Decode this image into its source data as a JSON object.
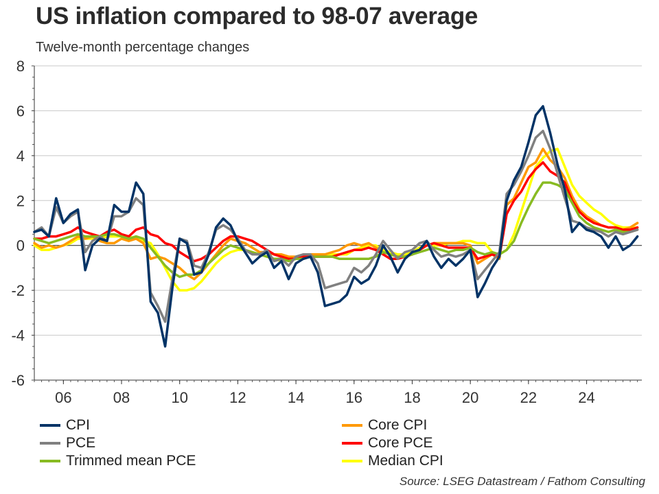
{
  "chart_data": {
    "type": "line",
    "title": "US inflation compared to 98-07 average",
    "subtitle": "Twelve-month percentage changes",
    "source": "Source: LSEG Datastream / Fathom Consulting",
    "xlabel": "",
    "ylabel": "",
    "xlim": [
      2005.0,
      2025.9
    ],
    "ylim": [
      -6,
      8
    ],
    "yticks": [
      8,
      6,
      4,
      2,
      0,
      -2,
      -4,
      -6
    ],
    "ytick_labels": [
      "8",
      "6",
      "4",
      "2",
      "0",
      "-2",
      "-4",
      "-6"
    ],
    "xticks": [
      2006,
      2008,
      2010,
      2012,
      2014,
      2016,
      2018,
      2020,
      2022,
      2024
    ],
    "xtick_labels": [
      "06",
      "08",
      "10",
      "12",
      "14",
      "16",
      "18",
      "20",
      "22",
      "24"
    ],
    "grid": true,
    "legend_position": "bottom",
    "x": [
      2005.0,
      2005.25,
      2005.5,
      2005.75,
      2006.0,
      2006.25,
      2006.5,
      2006.75,
      2007.0,
      2007.25,
      2007.5,
      2007.75,
      2008.0,
      2008.25,
      2008.5,
      2008.75,
      2009.0,
      2009.25,
      2009.5,
      2009.75,
      2010.0,
      2010.25,
      2010.5,
      2010.75,
      2011.0,
      2011.25,
      2011.5,
      2011.75,
      2012.0,
      2012.25,
      2012.5,
      2012.75,
      2013.0,
      2013.25,
      2013.5,
      2013.75,
      2014.0,
      2014.25,
      2014.5,
      2014.75,
      2015.0,
      2015.25,
      2015.5,
      2015.75,
      2016.0,
      2016.25,
      2016.5,
      2016.75,
      2017.0,
      2017.25,
      2017.5,
      2017.75,
      2018.0,
      2018.25,
      2018.5,
      2018.75,
      2019.0,
      2019.25,
      2019.5,
      2019.75,
      2020.0,
      2020.25,
      2020.5,
      2020.75,
      2021.0,
      2021.25,
      2021.5,
      2021.75,
      2022.0,
      2022.25,
      2022.5,
      2022.75,
      2023.0,
      2023.25,
      2023.5,
      2023.75,
      2024.0,
      2024.25,
      2024.5,
      2024.75,
      2025.0,
      2025.25,
      2025.5,
      2025.75
    ],
    "series": [
      {
        "name": "CPI",
        "color": "#003366",
        "values": [
          0.6,
          0.7,
          0.4,
          2.1,
          1.0,
          1.4,
          1.6,
          -1.1,
          0.0,
          0.3,
          0.2,
          1.8,
          1.5,
          1.5,
          2.8,
          2.3,
          -2.5,
          -3.0,
          -4.5,
          -1.9,
          0.3,
          0.1,
          -1.3,
          -1.2,
          -0.4,
          0.8,
          1.2,
          0.9,
          0.2,
          -0.3,
          -0.8,
          -0.5,
          -0.3,
          -1.0,
          -0.7,
          -1.5,
          -0.8,
          -0.6,
          -0.5,
          -1.2,
          -2.7,
          -2.6,
          -2.5,
          -2.2,
          -1.4,
          -1.7,
          -1.5,
          -0.9,
          0.0,
          -0.5,
          -1.2,
          -0.6,
          -0.3,
          -0.2,
          0.2,
          -0.5,
          -1.0,
          -0.6,
          -0.9,
          -0.6,
          -0.2,
          -2.3,
          -1.7,
          -1.0,
          -0.5,
          2.0,
          2.9,
          3.5,
          4.6,
          5.8,
          6.2,
          5.0,
          3.6,
          2.5,
          0.6,
          1.0,
          0.7,
          0.6,
          0.4,
          -0.1,
          0.4,
          -0.2,
          0.0,
          0.4
        ]
      },
      {
        "name": "PCE",
        "color": "#808080",
        "values": [
          0.6,
          0.8,
          0.4,
          1.7,
          1.0,
          1.3,
          1.5,
          -0.3,
          0.2,
          0.4,
          0.2,
          1.3,
          1.3,
          1.5,
          2.1,
          1.8,
          -2.1,
          -2.7,
          -3.4,
          -1.5,
          0.3,
          0.2,
          -0.9,
          -1.0,
          -0.3,
          0.7,
          0.9,
          0.7,
          0.3,
          -0.2,
          -0.4,
          -0.4,
          -0.2,
          -0.7,
          -0.6,
          -0.9,
          -0.5,
          -0.4,
          -0.4,
          -0.8,
          -1.9,
          -1.8,
          -1.7,
          -1.6,
          -1.0,
          -1.2,
          -0.9,
          -0.4,
          0.2,
          -0.2,
          -0.6,
          -0.3,
          -0.2,
          0.1,
          0.2,
          -0.2,
          -0.5,
          -0.4,
          -0.5,
          -0.4,
          -0.2,
          -1.5,
          -1.1,
          -0.7,
          -0.3,
          2.3,
          2.7,
          3.3,
          4.0,
          4.8,
          5.1,
          4.3,
          3.2,
          2.1,
          1.1,
          1.0,
          0.8,
          0.7,
          0.6,
          0.4,
          0.6,
          0.5,
          0.6,
          0.7
        ]
      },
      {
        "name": "Core CPI",
        "color": "#ff9900",
        "values": [
          0.1,
          -0.1,
          0.0,
          -0.1,
          0.0,
          0.2,
          0.4,
          0.3,
          0.4,
          0.2,
          0.1,
          0.1,
          0.3,
          0.2,
          0.3,
          0.1,
          -0.6,
          -0.5,
          -0.6,
          -0.8,
          -1.0,
          -1.3,
          -1.5,
          -1.2,
          -0.8,
          -0.4,
          0.0,
          0.3,
          0.2,
          0.1,
          -0.1,
          -0.3,
          -0.3,
          -0.4,
          -0.4,
          -0.5,
          -0.5,
          -0.5,
          -0.4,
          -0.4,
          -0.4,
          -0.3,
          -0.2,
          0.0,
          0.1,
          0.0,
          0.1,
          -0.1,
          -0.3,
          -0.4,
          -0.5,
          -0.5,
          -0.4,
          -0.2,
          0.0,
          0.1,
          0.1,
          0.1,
          0.1,
          0.1,
          0.0,
          -0.8,
          -0.6,
          -0.4,
          -0.6,
          1.8,
          2.1,
          2.8,
          3.5,
          3.7,
          4.3,
          3.8,
          3.5,
          3.0,
          2.2,
          1.6,
          1.3,
          1.1,
          0.9,
          0.8,
          0.8,
          0.7,
          0.8,
          1.0
        ]
      },
      {
        "name": "Core PCE",
        "color": "#ff0000",
        "values": [
          0.3,
          0.3,
          0.4,
          0.4,
          0.5,
          0.6,
          0.8,
          0.6,
          0.5,
          0.4,
          0.6,
          0.7,
          0.5,
          0.4,
          0.7,
          0.8,
          0.5,
          0.4,
          0.1,
          0.0,
          -0.3,
          -0.5,
          -0.7,
          -0.6,
          -0.4,
          -0.1,
          0.2,
          0.4,
          0.4,
          0.3,
          0.2,
          0.0,
          -0.2,
          -0.4,
          -0.5,
          -0.6,
          -0.6,
          -0.5,
          -0.5,
          -0.5,
          -0.5,
          -0.5,
          -0.4,
          -0.3,
          -0.2,
          -0.2,
          -0.1,
          -0.2,
          -0.4,
          -0.6,
          -0.6,
          -0.5,
          -0.4,
          -0.2,
          0.0,
          0.1,
          0.0,
          -0.1,
          -0.1,
          -0.1,
          -0.1,
          -0.6,
          -0.5,
          -0.4,
          -0.5,
          1.4,
          2.0,
          2.4,
          3.0,
          3.4,
          3.7,
          3.3,
          3.1,
          2.8,
          2.0,
          1.5,
          1.2,
          1.0,
          0.9,
          0.8,
          0.8,
          0.7,
          0.7,
          0.8
        ]
      },
      {
        "name": "Trimmed mean PCE",
        "color": "#88bb22",
        "values": [
          0.3,
          0.2,
          0.1,
          0.2,
          0.3,
          0.4,
          0.5,
          0.4,
          0.4,
          0.4,
          0.5,
          0.5,
          0.4,
          0.3,
          0.4,
          0.3,
          -0.1,
          -0.5,
          -0.9,
          -1.2,
          -1.4,
          -1.3,
          -1.3,
          -1.1,
          -0.8,
          -0.5,
          -0.2,
          0.0,
          -0.1,
          -0.2,
          -0.3,
          -0.4,
          -0.5,
          -0.6,
          -0.6,
          -0.7,
          -0.6,
          -0.6,
          -0.5,
          -0.5,
          -0.5,
          -0.5,
          -0.6,
          -0.6,
          -0.6,
          -0.6,
          -0.6,
          -0.5,
          -0.3,
          -0.4,
          -0.5,
          -0.5,
          -0.4,
          -0.3,
          -0.2,
          -0.1,
          -0.2,
          -0.3,
          -0.2,
          -0.2,
          -0.1,
          -0.3,
          -0.4,
          -0.3,
          -0.4,
          -0.2,
          0.2,
          1.0,
          1.7,
          2.3,
          2.8,
          2.8,
          2.7,
          2.5,
          1.9,
          1.3,
          1.0,
          0.8,
          0.7,
          0.6,
          0.7,
          0.6,
          0.6,
          0.7
        ]
      },
      {
        "name": "Median CPI",
        "color": "#ffff00",
        "values": [
          0.0,
          -0.2,
          -0.2,
          -0.1,
          0.0,
          0.1,
          0.3,
          0.3,
          0.3,
          0.3,
          0.4,
          0.4,
          0.4,
          0.4,
          0.3,
          0.2,
          0.1,
          -0.4,
          -1.0,
          -1.6,
          -2.0,
          -2.0,
          -1.9,
          -1.6,
          -1.2,
          -0.8,
          -0.5,
          -0.3,
          -0.2,
          -0.2,
          -0.3,
          -0.4,
          -0.5,
          -0.6,
          -0.7,
          -0.6,
          -0.6,
          -0.5,
          -0.5,
          -0.5,
          -0.5,
          -0.4,
          -0.4,
          -0.4,
          -0.2,
          -0.1,
          0.0,
          0.0,
          -0.2,
          -0.3,
          -0.4,
          -0.4,
          -0.3,
          -0.1,
          0.0,
          0.0,
          0.0,
          0.1,
          0.1,
          0.2,
          0.2,
          0.1,
          0.1,
          -0.3,
          -0.4,
          -0.2,
          0.5,
          1.5,
          2.5,
          3.5,
          3.9,
          4.2,
          4.3,
          3.5,
          2.7,
          2.2,
          1.9,
          1.6,
          1.4,
          1.1,
          0.9,
          0.8,
          0.8,
          0.8
        ]
      }
    ]
  }
}
